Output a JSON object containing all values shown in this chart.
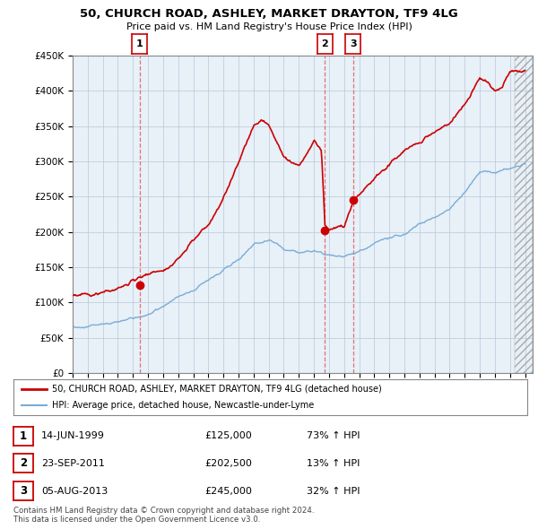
{
  "title": "50, CHURCH ROAD, ASHLEY, MARKET DRAYTON, TF9 4LG",
  "subtitle": "Price paid vs. HM Land Registry's House Price Index (HPI)",
  "ylim": [
    0,
    450000
  ],
  "yticks": [
    0,
    50000,
    100000,
    150000,
    200000,
    250000,
    300000,
    350000,
    400000,
    450000
  ],
  "ytick_labels": [
    "£0",
    "£50K",
    "£100K",
    "£150K",
    "£200K",
    "£250K",
    "£300K",
    "£350K",
    "£400K",
    "£450K"
  ],
  "sale_color": "#cc0000",
  "hpi_color": "#7aadd4",
  "annotation_line_color": "#dd6666",
  "chart_bg": "#e8f0f8",
  "sales": [
    {
      "date_num": 1999.45,
      "price": 125000,
      "label": "1"
    },
    {
      "date_num": 2011.73,
      "price": 202500,
      "label": "2"
    },
    {
      "date_num": 2013.59,
      "price": 245000,
      "label": "3"
    }
  ],
  "legend_sale_label": "50, CHURCH ROAD, ASHLEY, MARKET DRAYTON, TF9 4LG (detached house)",
  "legend_hpi_label": "HPI: Average price, detached house, Newcastle-under-Lyme",
  "table_rows": [
    {
      "num": "1",
      "date": "14-JUN-1999",
      "price": "£125,000",
      "change": "73% ↑ HPI"
    },
    {
      "num": "2",
      "date": "23-SEP-2011",
      "price": "£202,500",
      "change": "13% ↑ HPI"
    },
    {
      "num": "3",
      "date": "05-AUG-2013",
      "price": "£245,000",
      "change": "32% ↑ HPI"
    }
  ],
  "footer": "Contains HM Land Registry data © Crown copyright and database right 2024.\nThis data is licensed under the Open Government Licence v3.0.",
  "background_color": "#ffffff",
  "grid_color": "#b8c8d8"
}
